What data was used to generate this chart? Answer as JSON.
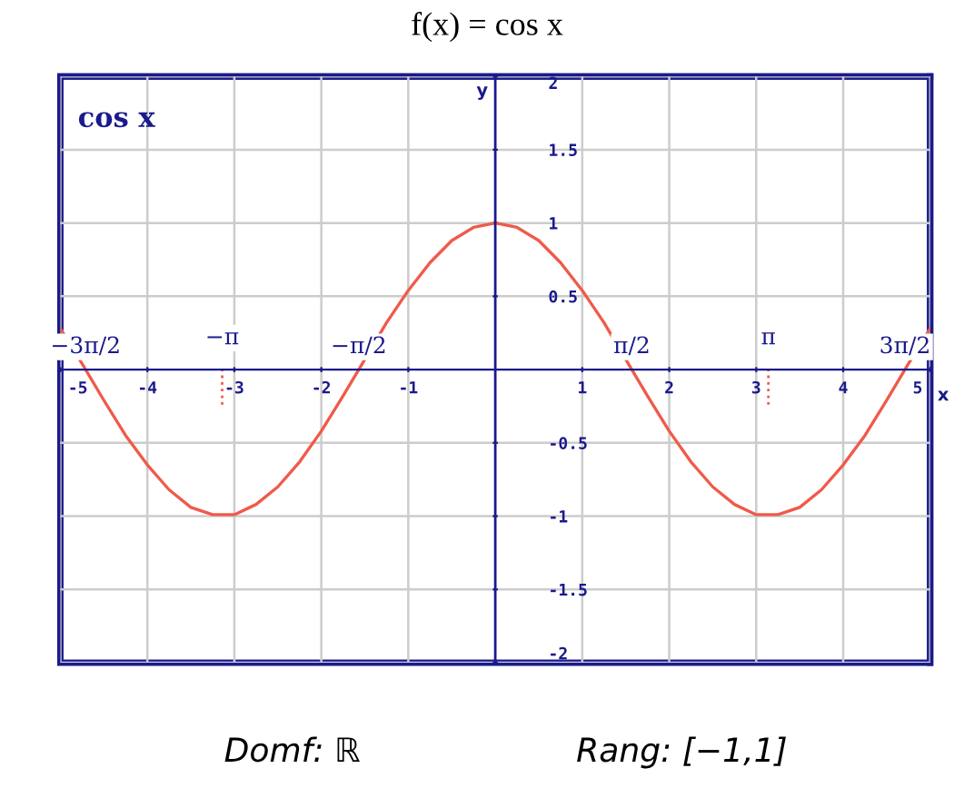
{
  "chart_data": {
    "type": "line",
    "title": "f(x) = cos x",
    "xlabel": "x",
    "ylabel": "y",
    "x": [
      -5,
      -4.75,
      -4.5,
      -4.25,
      -4,
      -3.75,
      -3.5,
      -3.25,
      -3,
      -2.75,
      -2.5,
      -2.25,
      -2,
      -1.75,
      -1.5,
      -1.25,
      -1,
      -0.75,
      -0.5,
      -0.25,
      0,
      0.25,
      0.5,
      0.75,
      1,
      1.25,
      1.5,
      1.75,
      2,
      2.25,
      2.5,
      2.75,
      3,
      3.25,
      3.5,
      3.75,
      4,
      4.25,
      4.5,
      4.75,
      5
    ],
    "series": [
      {
        "color": "#f05a4a",
        "values": [
          0.28,
          0.04,
          -0.21,
          -0.45,
          -0.65,
          -0.82,
          -0.94,
          -0.99,
          -0.99,
          -0.92,
          -0.8,
          -0.63,
          -0.42,
          -0.18,
          0.07,
          0.32,
          0.54,
          0.73,
          0.88,
          0.97,
          1,
          0.97,
          0.88,
          0.73,
          0.54,
          0.32,
          0.07,
          -0.18,
          -0.42,
          -0.63,
          -0.8,
          -0.92,
          -0.99,
          -0.99,
          -0.94,
          -0.82,
          -0.65,
          -0.45,
          -0.21,
          0.04,
          0.28
        ]
      }
    ],
    "xlim": [
      -5,
      5
    ],
    "ylim": [
      -2,
      2
    ],
    "xticks": [
      -5,
      -4,
      -3,
      -2,
      -1,
      1,
      2,
      3,
      4,
      5
    ],
    "yticks": [
      -2,
      -1.5,
      -1,
      -0.5,
      0.5,
      1,
      1.5,
      2
    ],
    "ref_lines": [
      {
        "axis": "x",
        "value": 0,
        "color": "#1a1a8c"
      },
      {
        "axis": "x",
        "value": -3.14,
        "label": "−π",
        "color": "#f05a4a",
        "line_style": "dotted"
      },
      {
        "axis": "x",
        "value": 3.14,
        "label": "π",
        "color": "#f05a4a",
        "line_style": "dotted"
      }
    ],
    "grid": true,
    "legend": false,
    "marker": "none",
    "line_style": "solid",
    "annotations": [
      "cos x",
      {
        "text": "−3π/2",
        "x": -4.71,
        "y": 0
      },
      {
        "text": "−π/2",
        "x": -1.57,
        "y": 0
      },
      {
        "text": "π/2",
        "x": 1.57,
        "y": 0
      },
      {
        "text": "3π/2",
        "x": 4.71,
        "y": 0
      },
      "Domf: ℝ",
      "Rang: [−1,1]"
    ]
  }
}
